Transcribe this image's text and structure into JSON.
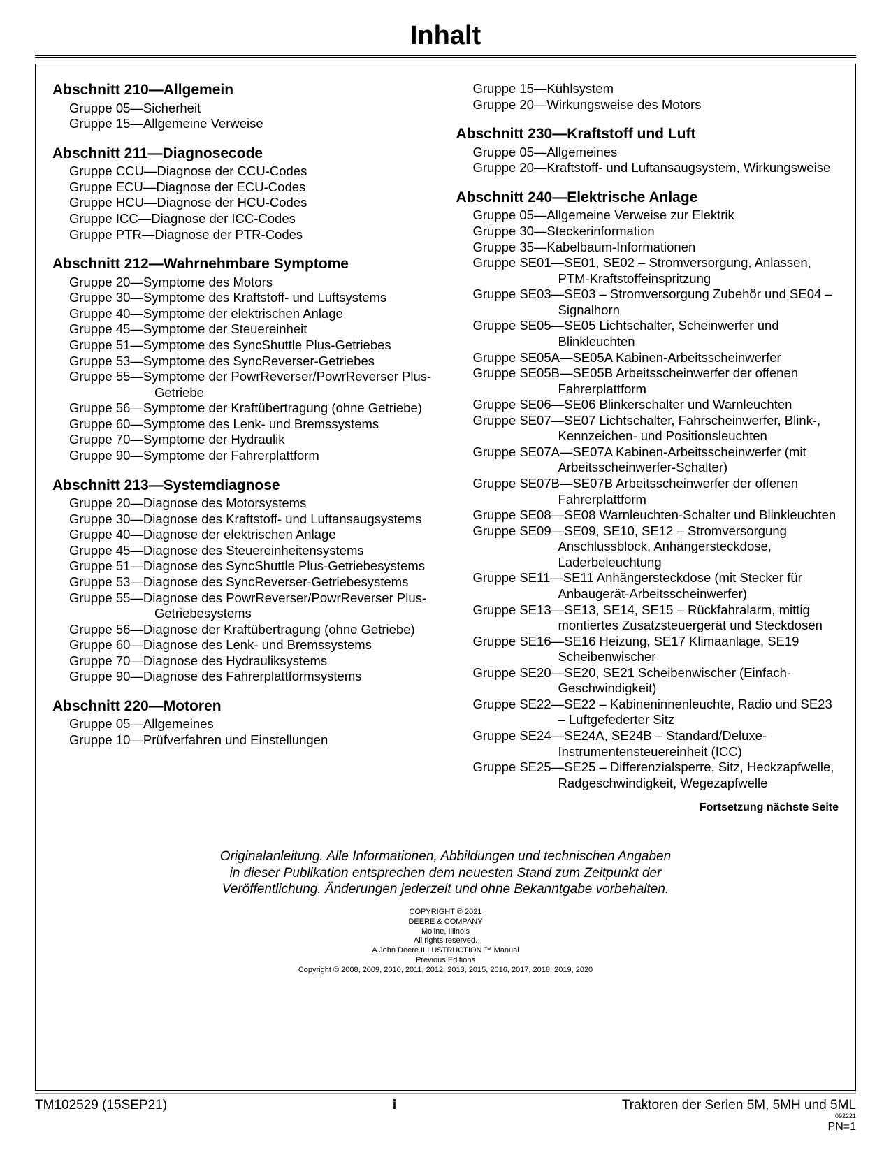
{
  "title": "Inhalt",
  "left_sections": [
    {
      "heading": "Abschnitt 210—Allgemein",
      "items": [
        "Gruppe 05—Sicherheit",
        "Gruppe 15—Allgemeine Verweise"
      ]
    },
    {
      "heading": "Abschnitt 211—Diagnosecode",
      "items": [
        "Gruppe CCU—Diagnose der CCU-Codes",
        "Gruppe ECU—Diagnose der ECU-Codes",
        "Gruppe HCU—Diagnose der HCU-Codes",
        "Gruppe ICC—Diagnose der ICC-Codes",
        "Gruppe PTR—Diagnose der PTR-Codes"
      ]
    },
    {
      "heading": "Abschnitt 212—Wahrnehmbare Symptome",
      "items": [
        "Gruppe 20—Symptome des Motors",
        "Gruppe 30—Symptome des Kraftstoff- und Luftsystems",
        "Gruppe 40—Symptome der elektrischen Anlage",
        "Gruppe 45—Symptome der Steuereinheit",
        "Gruppe 51—Symptome des SyncShuttle Plus-Getriebes",
        "Gruppe 53—Symptome des SyncReverser-Getriebes",
        "Gruppe 55—Symptome der PowrReverser/PowrReverser Plus-Getriebe",
        "Gruppe 56—Symptome der Kraftübertragung (ohne Getriebe)",
        "Gruppe 60—Symptome des Lenk- und Bremssystems",
        "Gruppe 70—Symptome der Hydraulik",
        "Gruppe 90—Symptome der Fahrerplattform"
      ]
    },
    {
      "heading": "Abschnitt 213—Systemdiagnose",
      "items": [
        "Gruppe 20—Diagnose des Motorsystems",
        "Gruppe 30—Diagnose des Kraftstoff- und Luftansaugsystems",
        "Gruppe 40—Diagnose der elektrischen Anlage",
        "Gruppe 45—Diagnose des Steuereinheitensystems",
        "Gruppe 51—Diagnose des SyncShuttle Plus-Getriebesystems",
        "Gruppe 53—Diagnose des SyncReverser-Getriebesystems",
        "Gruppe 55—Diagnose des PowrReverser/PowrReverser Plus-Getriebesystems",
        "Gruppe 56—Diagnose der Kraftübertragung (ohne Getriebe)",
        "Gruppe 60—Diagnose des Lenk- und Bremssystems",
        "Gruppe 70—Diagnose des Hydrauliksystems",
        "Gruppe 90—Diagnose des Fahrerplattformsystems"
      ]
    },
    {
      "heading": "Abschnitt 220—Motoren",
      "items": [
        "Gruppe 05—Allgemeines",
        "Gruppe 10—Prüfverfahren und Einstellungen"
      ]
    }
  ],
  "right_pre_items": [
    "Gruppe 15—Kühlsystem",
    "Gruppe 20—Wirkungsweise des Motors"
  ],
  "right_sections": [
    {
      "heading": "Abschnitt 230—Kraftstoff und Luft",
      "items": [
        "Gruppe 05—Allgemeines",
        "Gruppe 20—Kraftstoff- und Luftansaugsystem, Wirkungsweise"
      ]
    },
    {
      "heading": "Abschnitt 240—Elektrische Anlage",
      "items": [
        "Gruppe 05—Allgemeine Verweise zur Elektrik",
        "Gruppe 30—Steckerinformation",
        "Gruppe 35—Kabelbaum-Informationen",
        "Gruppe SE01—SE01, SE02 – Stromversorgung, Anlassen, PTM-Kraftstoffeinspritzung",
        "Gruppe SE03—SE03 – Stromversorgung Zubehör und SE04 – Signalhorn",
        "Gruppe SE05—SE05 Lichtschalter, Scheinwerfer und Blinkleuchten",
        "Gruppe SE05A—SE05A Kabinen-Arbeitsscheinwerfer",
        "Gruppe SE05B—SE05B Arbeitsscheinwerfer der offenen Fahrerplattform",
        "Gruppe SE06—SE06 Blinkerschalter und Warnleuchten",
        "Gruppe SE07—SE07 Lichtschalter, Fahrscheinwerfer, Blink-, Kennzeichen- und Positionsleuchten",
        "Gruppe SE07A—SE07A Kabinen-Arbeitsscheinwerfer (mit Arbeitsscheinwerfer-Schalter)",
        "Gruppe SE07B—SE07B Arbeitsscheinwerfer der offenen Fahrerplattform",
        "Gruppe SE08—SE08 Warnleuchten-Schalter und Blinkleuchten",
        "Gruppe SE09—SE09, SE10, SE12 – Stromversorgung Anschlussblock, Anhängersteckdose, Laderbeleuchtung",
        "Gruppe SE11—SE11 Anhängersteckdose (mit Stecker für Anbaugerät-Arbeitsscheinwerfer)",
        "Gruppe SE13—SE13, SE14, SE15 – Rückfahralarm, mittig montiertes Zusatzsteuergerät und Steckdosen",
        "Gruppe SE16—SE16 Heizung, SE17 Klimaanlage, SE19 Scheibenwischer",
        "Gruppe SE20—SE20, SE21 Scheibenwischer (Einfach-Geschwindigkeit)",
        "Gruppe SE22—SE22 – Kabineninnenleuchte, Radio und SE23 – Luftgefederter Sitz",
        "Gruppe SE24—SE24A, SE24B – Standard/Deluxe-Instrumentensteuereinheit (ICC)",
        "Gruppe SE25—SE25 – Differenzialsperre, Sitz, Heckzapfwelle, Radgeschwindigkeit, Wegezapfwelle"
      ]
    }
  ],
  "continue_note": "Fortsetzung nächste Seite",
  "disclaimer": [
    "Originalanleitung. Alle Informationen, Abbildungen und technischen Angaben",
    "in dieser Publikation entsprechen dem neuesten Stand zum Zeitpunkt der",
    "Veröffentlichung. Änderungen jederzeit und ohne Bekanntgabe vorbehalten."
  ],
  "copyright": [
    "COPYRIGHT © 2021",
    "DEERE & COMPANY",
    "Moline, Illinois",
    "All rights reserved.",
    "A John Deere ILLUSTRUCTION ™ Manual",
    "Previous Editions",
    "Copyright © 2008, 2009, 2010, 2011, 2012, 2013, 2015, 2016, 2017, 2018, 2019, 2020"
  ],
  "footer": {
    "left": "TM102529 (15SEP21)",
    "center": "i",
    "right_main": "Traktoren der Serien 5M, 5MH und 5ML",
    "right_tiny": "092221",
    "right_pn": "PN=1"
  }
}
